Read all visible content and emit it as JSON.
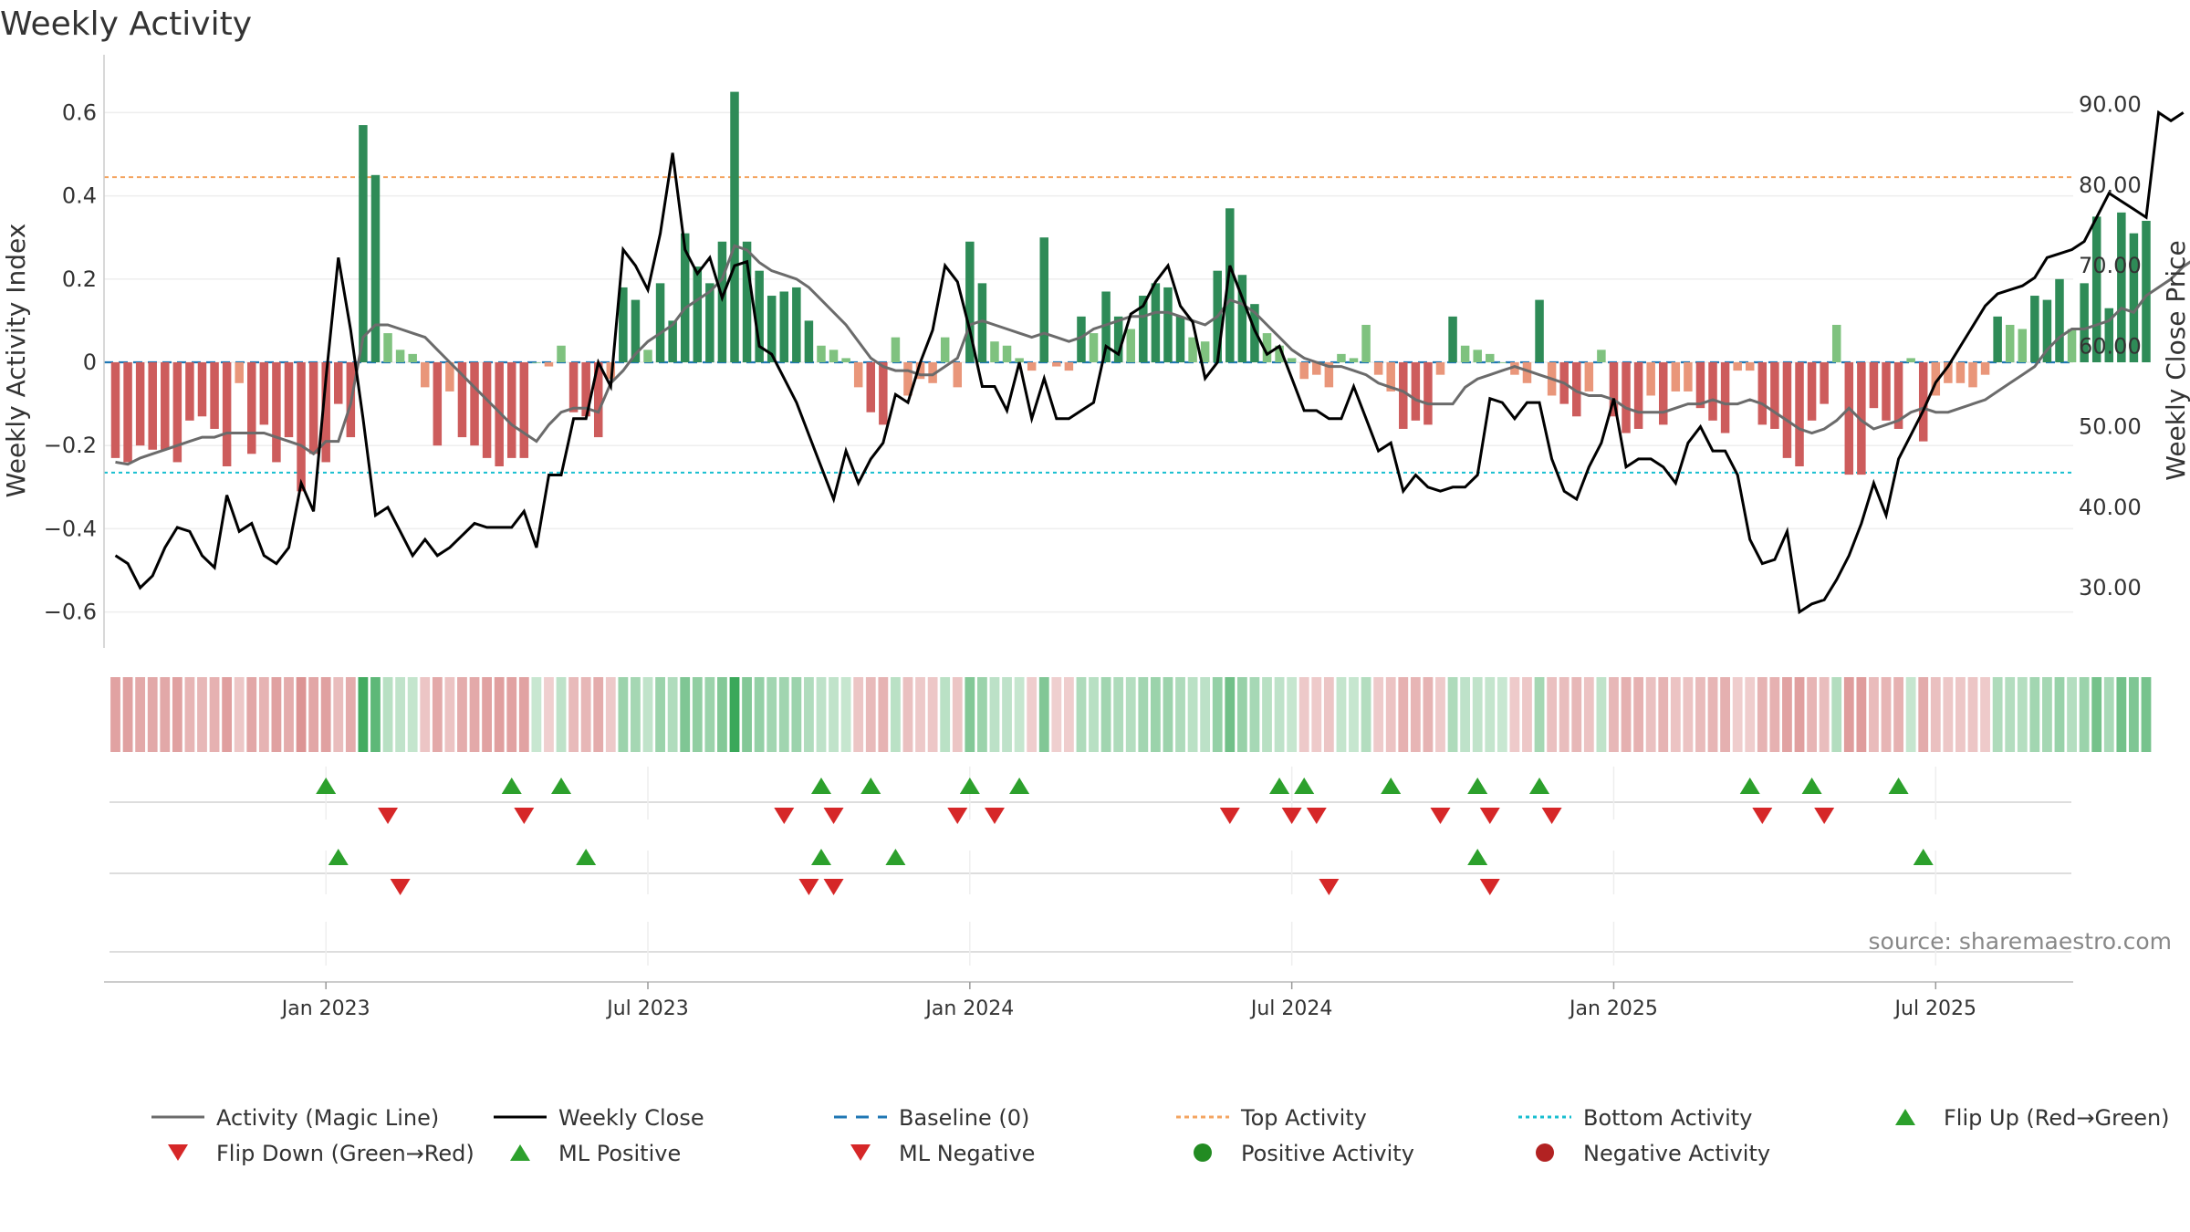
{
  "chart_data": {
    "type": "bar",
    "title": "Weekly Activity",
    "ylabel": "Weekly Activity Index",
    "y2label": "Weekly Close Price",
    "source": "source: sharemaestro.com",
    "ylim": [
      -0.7,
      0.7
    ],
    "y2lim": [
      22,
      94
    ],
    "yticks": [
      -0.6,
      -0.4,
      -0.2,
      0,
      0.2,
      0.4,
      0.6
    ],
    "ytick_labels": [
      "−0.6",
      "−0.4",
      "−0.2",
      "0",
      "0.2",
      "0.4",
      "0.6"
    ],
    "y2ticks": [
      30,
      40,
      50,
      60,
      70,
      80,
      90
    ],
    "y2tick_labels": [
      "30.00",
      "40.00",
      "50.00",
      "60.00",
      "70.00",
      "80.00",
      "90.00"
    ],
    "xticks": [
      {
        "week": 17,
        "label": "Jan 2023"
      },
      {
        "week": 43,
        "label": "Jul 2023"
      },
      {
        "week": 69,
        "label": "Jan 2024"
      },
      {
        "week": 95,
        "label": "Jul 2024"
      },
      {
        "week": 121,
        "label": "Jan 2025"
      },
      {
        "week": 147,
        "label": "Jul 2025"
      }
    ],
    "top_activity": 0.445,
    "bottom_activity": -0.265,
    "baseline": 0,
    "colors": {
      "green_dark": "#2e8b57",
      "green_light": "#7fc27f",
      "red_dark": "#cd5c5c",
      "red_light": "#e9967a",
      "magic_line": "#6b6b6b",
      "close": "#000000",
      "baseline": "#1f77b4",
      "top": "#f4a460",
      "bottom": "#17becf",
      "up": "#2ca02c",
      "down": "#d62728",
      "pos_dot": "#228b22",
      "neg_dot": "#b22222"
    },
    "activity": [
      -0.23,
      -0.24,
      -0.2,
      -0.21,
      -0.21,
      -0.24,
      -0.14,
      -0.13,
      -0.16,
      -0.25,
      -0.05,
      -0.22,
      -0.15,
      -0.24,
      -0.18,
      -0.31,
      -0.22,
      -0.24,
      -0.1,
      -0.18,
      0.57,
      0.45,
      0.07,
      0.03,
      0.02,
      -0.06,
      -0.2,
      -0.07,
      -0.18,
      -0.2,
      -0.23,
      -0.25,
      -0.23,
      -0.23,
      0.0,
      -0.01,
      0.04,
      -0.12,
      -0.13,
      -0.18,
      -0.04,
      0.18,
      0.15,
      0.03,
      0.19,
      0.1,
      0.31,
      0.23,
      0.19,
      0.29,
      0.65,
      0.29,
      0.22,
      0.16,
      0.17,
      0.18,
      0.1,
      0.04,
      0.03,
      0.01,
      -0.06,
      -0.12,
      -0.15,
      0.06,
      -0.08,
      -0.04,
      -0.05,
      0.06,
      -0.06,
      0.29,
      0.19,
      0.05,
      0.04,
      0.01,
      -0.02,
      0.3,
      -0.01,
      -0.02,
      0.11,
      0.07,
      0.17,
      0.11,
      0.08,
      0.16,
      0.19,
      0.18,
      0.11,
      0.06,
      0.05,
      0.22,
      0.37,
      0.21,
      0.14,
      0.07,
      0.04,
      0.01,
      -0.04,
      -0.03,
      -0.06,
      0.02,
      0.01,
      0.09,
      -0.03,
      -0.07,
      -0.16,
      -0.14,
      -0.15,
      -0.03,
      0.11,
      0.04,
      0.03,
      0.02,
      0.0,
      -0.03,
      -0.05,
      0.15,
      -0.08,
      -0.1,
      -0.13,
      -0.07,
      0.03,
      -0.13,
      -0.17,
      -0.16,
      -0.08,
      -0.15,
      -0.07,
      -0.07,
      -0.11,
      -0.14,
      -0.17,
      -0.02,
      -0.02,
      -0.15,
      -0.16,
      -0.23,
      -0.25,
      -0.14,
      -0.1,
      0.09,
      -0.27,
      -0.27,
      -0.11,
      -0.14,
      -0.16,
      0.01,
      -0.19,
      -0.08,
      -0.05,
      -0.05,
      -0.06,
      -0.03,
      0.11,
      0.09,
      0.08,
      0.16,
      0.15,
      0.2,
      0.08,
      0.19,
      0.35,
      0.13,
      0.36,
      0.31,
      0.34
    ],
    "magic_line": [
      -0.24,
      -0.245,
      -0.23,
      -0.22,
      -0.21,
      -0.2,
      -0.19,
      -0.18,
      -0.18,
      -0.17,
      -0.17,
      -0.17,
      -0.17,
      -0.18,
      -0.19,
      -0.2,
      -0.22,
      -0.19,
      -0.19,
      -0.1,
      0.06,
      0.09,
      0.09,
      0.08,
      0.07,
      0.06,
      0.03,
      0.0,
      -0.03,
      -0.06,
      -0.09,
      -0.12,
      -0.15,
      -0.17,
      -0.19,
      -0.15,
      -0.12,
      -0.11,
      -0.11,
      -0.12,
      -0.05,
      -0.02,
      0.02,
      0.05,
      0.07,
      0.09,
      0.13,
      0.15,
      0.17,
      0.2,
      0.28,
      0.27,
      0.24,
      0.22,
      0.21,
      0.2,
      0.18,
      0.15,
      0.12,
      0.09,
      0.05,
      0.01,
      -0.01,
      -0.02,
      -0.02,
      -0.03,
      -0.03,
      -0.01,
      0.01,
      0.09,
      0.1,
      0.09,
      0.08,
      0.07,
      0.06,
      0.07,
      0.06,
      0.05,
      0.06,
      0.08,
      0.09,
      0.1,
      0.11,
      0.11,
      0.12,
      0.12,
      0.11,
      0.1,
      0.09,
      0.11,
      0.15,
      0.14,
      0.12,
      0.09,
      0.06,
      0.03,
      0.01,
      0.0,
      -0.01,
      -0.01,
      -0.02,
      -0.03,
      -0.05,
      -0.06,
      -0.07,
      -0.09,
      -0.1,
      -0.1,
      -0.1,
      -0.06,
      -0.04,
      -0.03,
      -0.02,
      -0.01,
      -0.02,
      -0.03,
      -0.04,
      -0.05,
      -0.07,
      -0.08,
      -0.08,
      -0.09,
      -0.11,
      -0.12,
      -0.12,
      -0.12,
      -0.11,
      -0.1,
      -0.1,
      -0.09,
      -0.1,
      -0.1,
      -0.09,
      -0.1,
      -0.12,
      -0.14,
      -0.16,
      -0.17,
      -0.16,
      -0.14,
      -0.11,
      -0.14,
      -0.16,
      -0.15,
      -0.14,
      -0.12,
      -0.11,
      -0.12,
      -0.12,
      -0.11,
      -0.1,
      -0.09,
      -0.07,
      -0.05,
      -0.03,
      -0.01,
      0.03,
      0.06,
      0.08,
      0.08,
      0.09,
      0.1,
      0.13,
      0.12,
      0.16,
      0.18,
      0.2,
      0.23,
      0.25
    ],
    "close": [
      34,
      33,
      30,
      31.5,
      35,
      37.5,
      37,
      34,
      32.5,
      41.5,
      37,
      38,
      34,
      33,
      35,
      43,
      39.5,
      56,
      71,
      62,
      51,
      39,
      40,
      37,
      34,
      36,
      34,
      35,
      36.5,
      38,
      37.5,
      37.5,
      37.5,
      39.5,
      35,
      44,
      44,
      51,
      51,
      58,
      55,
      72,
      70,
      67,
      74,
      84,
      72,
      69,
      71,
      66,
      70,
      70.5,
      60,
      59,
      56,
      53,
      49,
      45,
      41,
      47,
      43,
      46,
      48,
      54,
      53,
      58,
      62,
      70,
      68,
      62,
      55,
      55,
      52,
      58,
      51,
      56,
      51,
      51,
      52,
      53,
      60,
      59,
      64,
      65,
      68,
      70,
      65,
      63,
      56,
      58,
      70,
      66,
      62,
      59,
      60,
      56,
      52,
      52,
      51,
      51,
      55,
      51,
      47,
      48,
      42,
      44,
      42.5,
      42,
      42.5,
      42.5,
      44,
      53.5,
      53,
      51,
      53,
      53,
      46,
      42,
      41,
      45,
      48,
      53.5,
      45,
      46,
      46,
      45,
      43,
      48,
      50,
      47,
      47,
      44,
      36,
      33,
      33.5,
      37,
      27,
      28,
      28.5,
      31,
      34,
      38,
      43,
      39,
      46,
      49,
      52,
      55.5,
      57.5,
      60,
      62.5,
      65,
      66.5,
      67,
      67.5,
      68.5,
      71,
      71.5,
      72,
      73,
      76,
      79,
      78,
      77,
      76,
      89,
      88,
      89
    ],
    "legend": [
      "Activity (Magic Line)",
      "Weekly Close",
      "Baseline (0)",
      "Top Activity",
      "Bottom Activity",
      "Flip Up (Red→Green)",
      "Flip Down (Green→Red)",
      "ML Positive",
      "ML Negative",
      "Positive Activity",
      "Negative Activity"
    ],
    "flip_up_weeks": [
      17,
      32,
      36,
      57,
      61,
      69,
      73,
      94,
      96,
      103,
      110,
      115,
      132,
      137,
      144
    ],
    "flip_down_weeks": [
      22,
      33,
      54,
      58,
      68,
      71,
      90,
      95,
      97,
      107,
      111,
      116,
      133,
      138
    ],
    "ml_pos_weeks": [
      18,
      38,
      57,
      63,
      110,
      146
    ],
    "ml_neg_weeks": [
      23,
      56,
      58,
      98,
      111
    ]
  }
}
